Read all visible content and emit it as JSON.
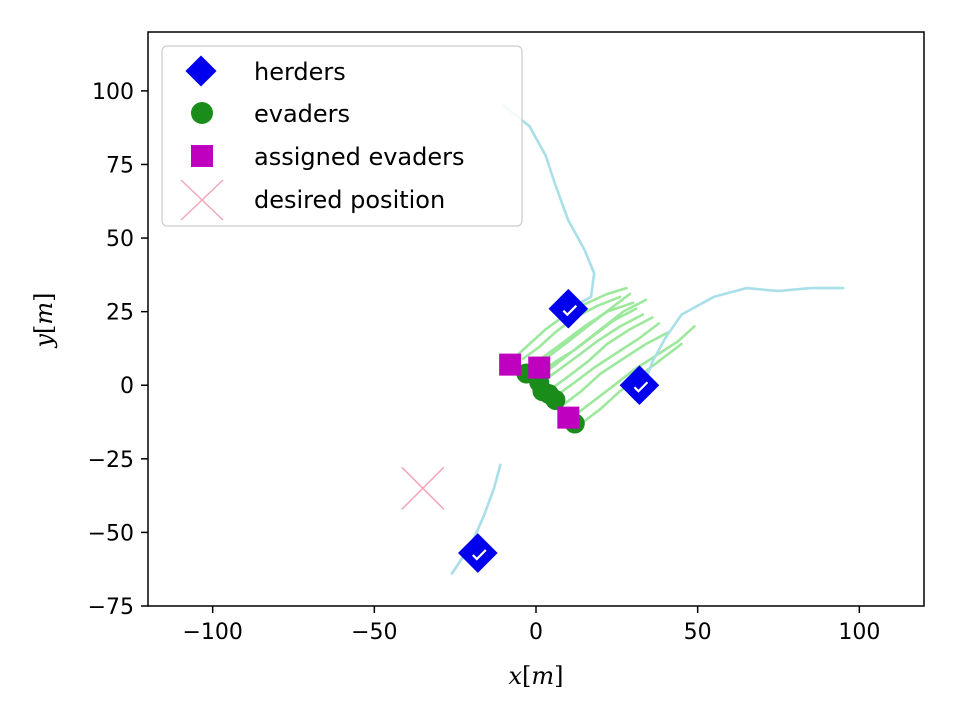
{
  "chart_data": {
    "type": "scatter",
    "title": "",
    "xlabel_parts": {
      "var": "x",
      "unit": "m"
    },
    "ylabel_parts": {
      "var": "y",
      "unit": "m"
    },
    "xlim": [
      -120,
      120
    ],
    "ylim": [
      -75,
      120
    ],
    "xticks": [
      -100,
      -50,
      0,
      50,
      100
    ],
    "yticks": [
      -75,
      -50,
      -25,
      0,
      25,
      50,
      75,
      100
    ],
    "xtick_labels": [
      "−100",
      "−50",
      "0",
      "50",
      "100"
    ],
    "ytick_labels": [
      "−75",
      "−50",
      "−25",
      "0",
      "25",
      "50",
      "75",
      "100"
    ],
    "grid": false,
    "legend_location": "upper-left",
    "legend": [
      {
        "label": "herders",
        "marker": "diamond",
        "color": "#0000ee"
      },
      {
        "label": "evaders",
        "marker": "circle",
        "color": "#1a8c1a"
      },
      {
        "label": "assigned evaders",
        "marker": "square",
        "color": "#bf00bf"
      },
      {
        "label": "desired position",
        "marker": "x",
        "color": "#f0a8b8"
      }
    ],
    "colors": {
      "herder": "#0000ee",
      "evader": "#1a8c1a",
      "assigned": "#bf00bf",
      "desired": "#f0a8b8",
      "herder_trail": "#a8dfe8",
      "evader_trail": "#9ce89c"
    },
    "series": [
      {
        "name": "herders",
        "points": [
          [
            10,
            26
          ],
          [
            32,
            0
          ],
          [
            -18,
            -57
          ]
        ]
      },
      {
        "name": "evaders",
        "points": [
          [
            -3,
            4
          ],
          [
            1,
            1
          ],
          [
            2,
            -2
          ],
          [
            4,
            -3
          ],
          [
            6,
            -5
          ],
          [
            12,
            -13
          ]
        ]
      },
      {
        "name": "assigned evaders",
        "points": [
          [
            -8,
            7
          ],
          [
            1,
            6
          ],
          [
            10,
            -11
          ]
        ]
      },
      {
        "name": "desired position",
        "points": [
          [
            -35,
            -35
          ]
        ]
      }
    ],
    "herder_trails": [
      [
        [
          -10,
          95
        ],
        [
          -2,
          88
        ],
        [
          3,
          78
        ],
        [
          6,
          68
        ],
        [
          10,
          56
        ],
        [
          15,
          46
        ],
        [
          18,
          38
        ],
        [
          17,
          30
        ],
        [
          12,
          27
        ]
      ],
      [
        [
          95,
          33
        ],
        [
          85,
          33
        ],
        [
          75,
          32
        ],
        [
          65,
          33
        ],
        [
          55,
          30
        ],
        [
          45,
          24
        ],
        [
          40,
          16
        ],
        [
          36,
          8
        ],
        [
          34,
          2
        ]
      ],
      [
        [
          -11,
          -27
        ],
        [
          -13,
          -35
        ],
        [
          -16,
          -44
        ],
        [
          -20,
          -54
        ],
        [
          -26,
          -64
        ]
      ]
    ],
    "evader_trails": [
      [
        [
          -6,
          10
        ],
        [
          -2,
          14
        ],
        [
          3,
          19
        ],
        [
          8,
          23
        ],
        [
          14,
          27
        ],
        [
          22,
          31
        ],
        [
          28,
          33
        ]
      ],
      [
        [
          -4,
          9
        ],
        [
          1,
          13
        ],
        [
          6,
          18
        ],
        [
          12,
          23
        ],
        [
          19,
          27
        ],
        [
          26,
          30
        ]
      ],
      [
        [
          -1,
          7
        ],
        [
          4,
          11
        ],
        [
          9,
          15
        ],
        [
          15,
          20
        ],
        [
          22,
          25
        ],
        [
          30,
          28
        ]
      ],
      [
        [
          1,
          4
        ],
        [
          6,
          8
        ],
        [
          12,
          12
        ],
        [
          18,
          17
        ],
        [
          24,
          22
        ],
        [
          31,
          26
        ]
      ],
      [
        [
          3,
          2
        ],
        [
          8,
          6
        ],
        [
          13,
          10
        ],
        [
          19,
          15
        ],
        [
          26,
          20
        ],
        [
          33,
          24
        ]
      ],
      [
        [
          5,
          -1
        ],
        [
          10,
          3
        ],
        [
          16,
          8
        ],
        [
          22,
          14
        ],
        [
          29,
          19
        ],
        [
          36,
          23
        ]
      ],
      [
        [
          7,
          -3
        ],
        [
          12,
          1
        ],
        [
          18,
          6
        ],
        [
          25,
          11
        ],
        [
          32,
          16
        ],
        [
          38,
          21
        ]
      ],
      [
        [
          8,
          -7
        ],
        [
          14,
          -2
        ],
        [
          20,
          4
        ],
        [
          27,
          9
        ],
        [
          34,
          14
        ],
        [
          41,
          18
        ]
      ],
      [
        [
          11,
          -11
        ],
        [
          17,
          -6
        ],
        [
          23,
          -1
        ],
        [
          30,
          5
        ],
        [
          37,
          10
        ],
        [
          44,
          15
        ],
        [
          49,
          20
        ]
      ],
      [
        [
          14,
          -13
        ],
        [
          20,
          -8
        ],
        [
          26,
          -2
        ],
        [
          33,
          4
        ],
        [
          39,
          9
        ],
        [
          45,
          14
        ]
      ],
      [
        [
          -2,
          5
        ],
        [
          3,
          9
        ],
        [
          9,
          14
        ],
        [
          16,
          20
        ],
        [
          23,
          26
        ],
        [
          29,
          31
        ]
      ],
      [
        [
          0,
          2
        ],
        [
          6,
          7
        ],
        [
          13,
          13
        ],
        [
          20,
          19
        ],
        [
          27,
          25
        ],
        [
          34,
          29
        ]
      ]
    ]
  }
}
